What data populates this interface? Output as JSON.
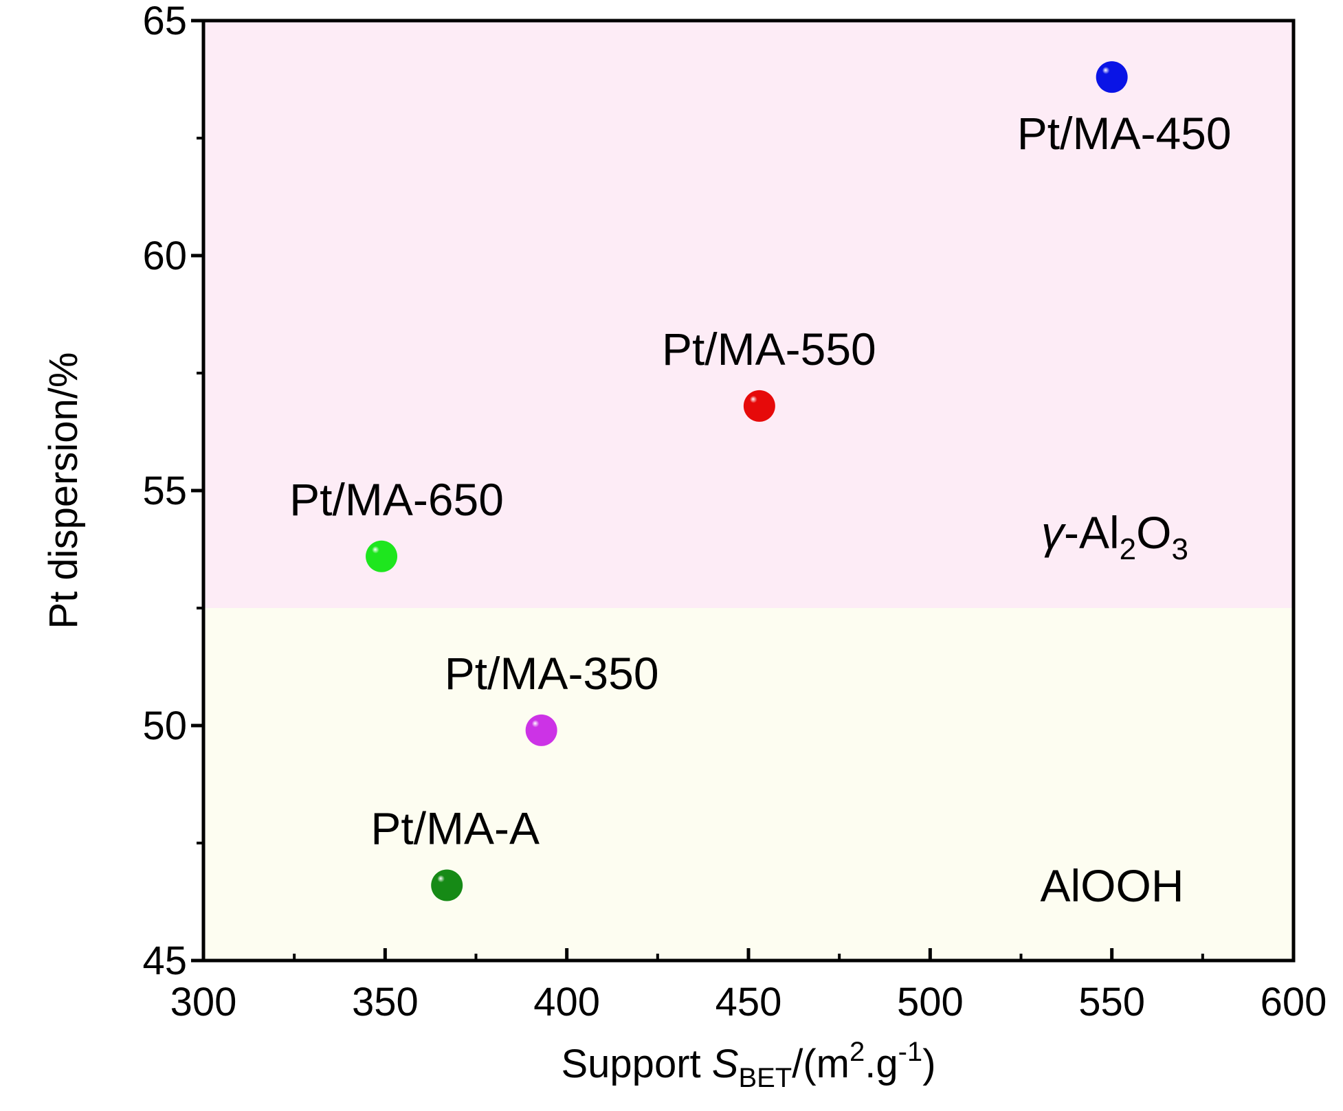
{
  "chart_data": {
    "type": "scatter",
    "title": "",
    "xlabel": "Support S_BET/(m2.g-1)",
    "xlabel_parts": {
      "prefix": "Support ",
      "symbol": "S",
      "symbol_sub": "BET",
      "unit_open": "/(m",
      "unit_sup": "2",
      "unit_mid": ".g",
      "unit_sup2": "-1",
      "unit_close": ")"
    },
    "ylabel": "Pt dispersion/%",
    "xlim": [
      300,
      600
    ],
    "ylim": [
      45,
      65
    ],
    "xticks": [
      300,
      350,
      400,
      450,
      500,
      550,
      600
    ],
    "yticks": [
      45,
      50,
      55,
      60,
      65
    ],
    "x_minor_step": 25,
    "y_minor_step": 2.5,
    "grid": false,
    "regions": [
      {
        "label": "AlOOH",
        "y_range": [
          45,
          52.5
        ],
        "color": "#fdfdf1"
      },
      {
        "label_parts": {
          "greek": "γ",
          "dash": "-Al",
          "sub1": "2",
          "mid": "O",
          "sub2": "3"
        },
        "label": "γ-Al2O3",
        "y_range": [
          52.5,
          65
        ],
        "color": "#fdecf6"
      }
    ],
    "points": [
      {
        "label": "Pt/MA-450",
        "x": 550,
        "y": 63.8,
        "color": "#0a14e6"
      },
      {
        "label": "Pt/MA-550",
        "x": 453,
        "y": 56.8,
        "color": "#e60a0a"
      },
      {
        "label": "Pt/MA-650",
        "x": 349,
        "y": 53.6,
        "color": "#1ee61e"
      },
      {
        "label": "Pt/MA-350",
        "x": 393,
        "y": 49.9,
        "color": "#cc33e6"
      },
      {
        "label": "Pt/MA-A",
        "x": 367,
        "y": 46.6,
        "color": "#168a16"
      }
    ]
  }
}
